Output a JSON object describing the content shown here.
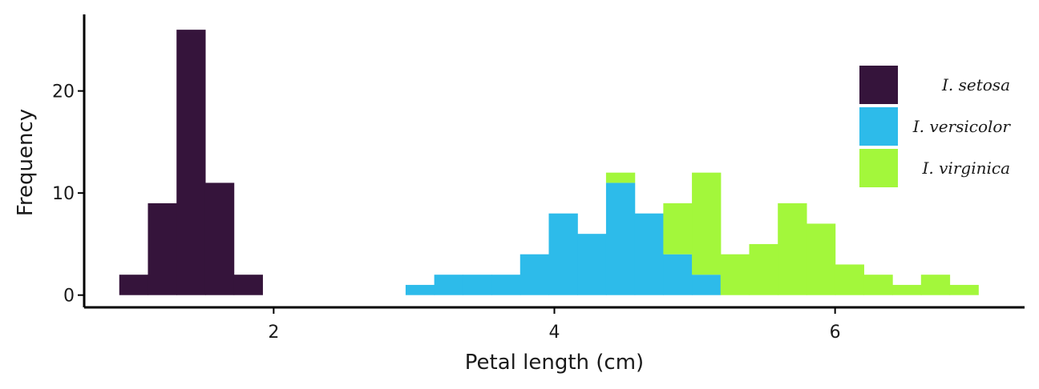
{
  "chart_data": {
    "type": "bar",
    "subtype": "stacked-histogram",
    "xlabel": "Petal length (cm)",
    "ylabel": "Frequency",
    "xlim": [
      0.65,
      7.35
    ],
    "ylim": [
      -1.2,
      27.5
    ],
    "xticks": [
      2,
      4,
      6
    ],
    "yticks": [
      0,
      10,
      20
    ],
    "bin_width": 0.204,
    "bin_start": 0.9,
    "legend_position": "top-right",
    "series": [
      {
        "name": "I. setosa",
        "color": "#35143b",
        "counts": [
          2,
          9,
          26,
          11,
          2,
          0,
          0,
          0,
          0,
          0,
          0,
          0,
          0,
          0,
          0,
          0,
          0,
          0,
          0,
          0,
          0,
          0,
          0,
          0,
          0,
          0,
          0,
          0,
          0,
          0
        ]
      },
      {
        "name": "I. versicolor",
        "color": "#2dbbea",
        "counts": [
          0,
          0,
          0,
          0,
          0,
          0,
          0,
          0,
          0,
          0,
          1,
          2,
          2,
          2,
          4,
          8,
          6,
          11,
          8,
          4,
          2,
          0,
          0,
          0,
          0,
          0,
          0,
          0,
          0,
          0
        ]
      },
      {
        "name": "I. virginica",
        "color": "#a3f73b",
        "counts": [
          0,
          0,
          0,
          0,
          0,
          0,
          0,
          0,
          0,
          0,
          0,
          0,
          0,
          0,
          0,
          0,
          0,
          1,
          0,
          5,
          10,
          4,
          5,
          9,
          7,
          3,
          2,
          1,
          2,
          1
        ]
      }
    ]
  }
}
